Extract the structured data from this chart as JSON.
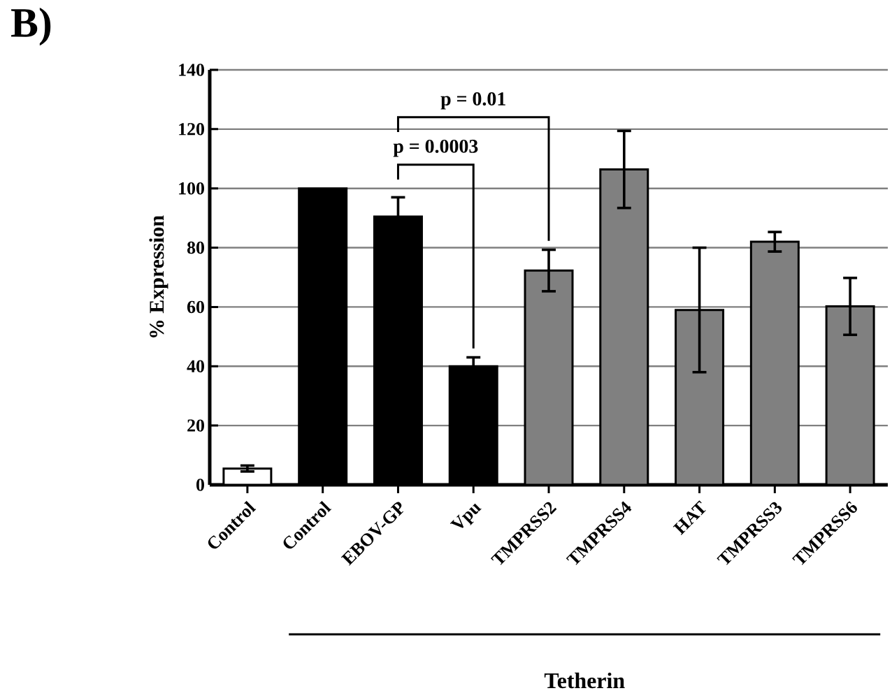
{
  "chart_data": {
    "type": "bar",
    "ylabel": "% Expression",
    "categories": [
      "Control",
      "Control",
      "EBOV-GP",
      "Vpu",
      "TMPRSS2",
      "TMPRSS4",
      "HAT",
      "TMPRSS3",
      "TMPRSS6"
    ],
    "values": [
      5.5,
      100,
      90.5,
      40,
      72.3,
      106.4,
      59,
      82,
      60.2
    ],
    "errors": [
      1,
      null,
      6.5,
      3,
      7,
      13,
      21,
      3.3,
      9.6
    ],
    "colors": [
      "#ffffff",
      "#000000",
      "#000000",
      "#000000",
      "#808080",
      "#808080",
      "#808080",
      "#808080",
      "#808080"
    ],
    "ylim": [
      0,
      140
    ],
    "yticks": [
      0,
      20,
      40,
      60,
      80,
      100,
      120,
      140
    ],
    "grid": "y",
    "annotations": [
      "B)",
      "p = 0.0003",
      "p = 0.01",
      "Tetherin"
    ]
  }
}
